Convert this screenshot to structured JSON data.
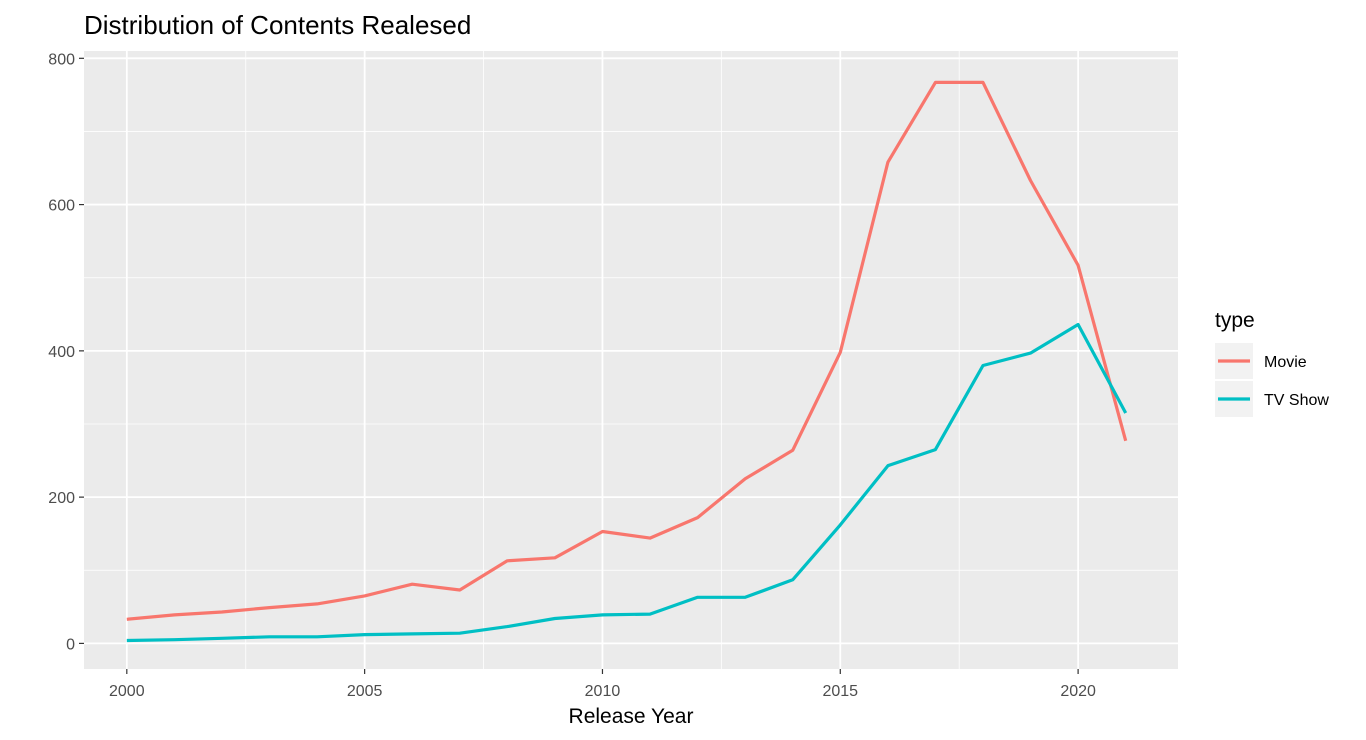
{
  "chart_data": {
    "type": "line",
    "title": "Distribution of Contents Realesed",
    "xlabel": "Release Year",
    "ylabel": "",
    "xlim": [
      1999.1,
      2022.1
    ],
    "ylim": [
      -35,
      810
    ],
    "x_ticks": [
      "2000",
      "2005",
      "2010",
      "2015",
      "2020"
    ],
    "y_ticks": [
      "0",
      "200",
      "400",
      "600",
      "800"
    ],
    "grid": true,
    "legend": {
      "title": "type",
      "position": "right"
    },
    "x": [
      2000,
      2001,
      2002,
      2003,
      2004,
      2005,
      2006,
      2007,
      2008,
      2009,
      2010,
      2011,
      2012,
      2013,
      2014,
      2015,
      2016,
      2017,
      2018,
      2019,
      2020,
      2021
    ],
    "series": [
      {
        "name": "Movie",
        "color": "#F8766D",
        "values": [
          33,
          39,
          43,
          49,
          54,
          65,
          81,
          73,
          113,
          117,
          153,
          144,
          172,
          225,
          264,
          398,
          658,
          767,
          767,
          633,
          517,
          277
        ]
      },
      {
        "name": "TV Show",
        "color": "#00BFC4",
        "values": [
          4,
          5,
          7,
          9,
          9,
          12,
          13,
          14,
          23,
          34,
          39,
          40,
          63,
          63,
          87,
          162,
          243,
          265,
          380,
          397,
          436,
          315
        ]
      }
    ],
    "colors": {
      "panel_bg": "#EBEBEB",
      "grid": "#FFFFFF",
      "legend_bg": "#F2F2F2"
    }
  }
}
